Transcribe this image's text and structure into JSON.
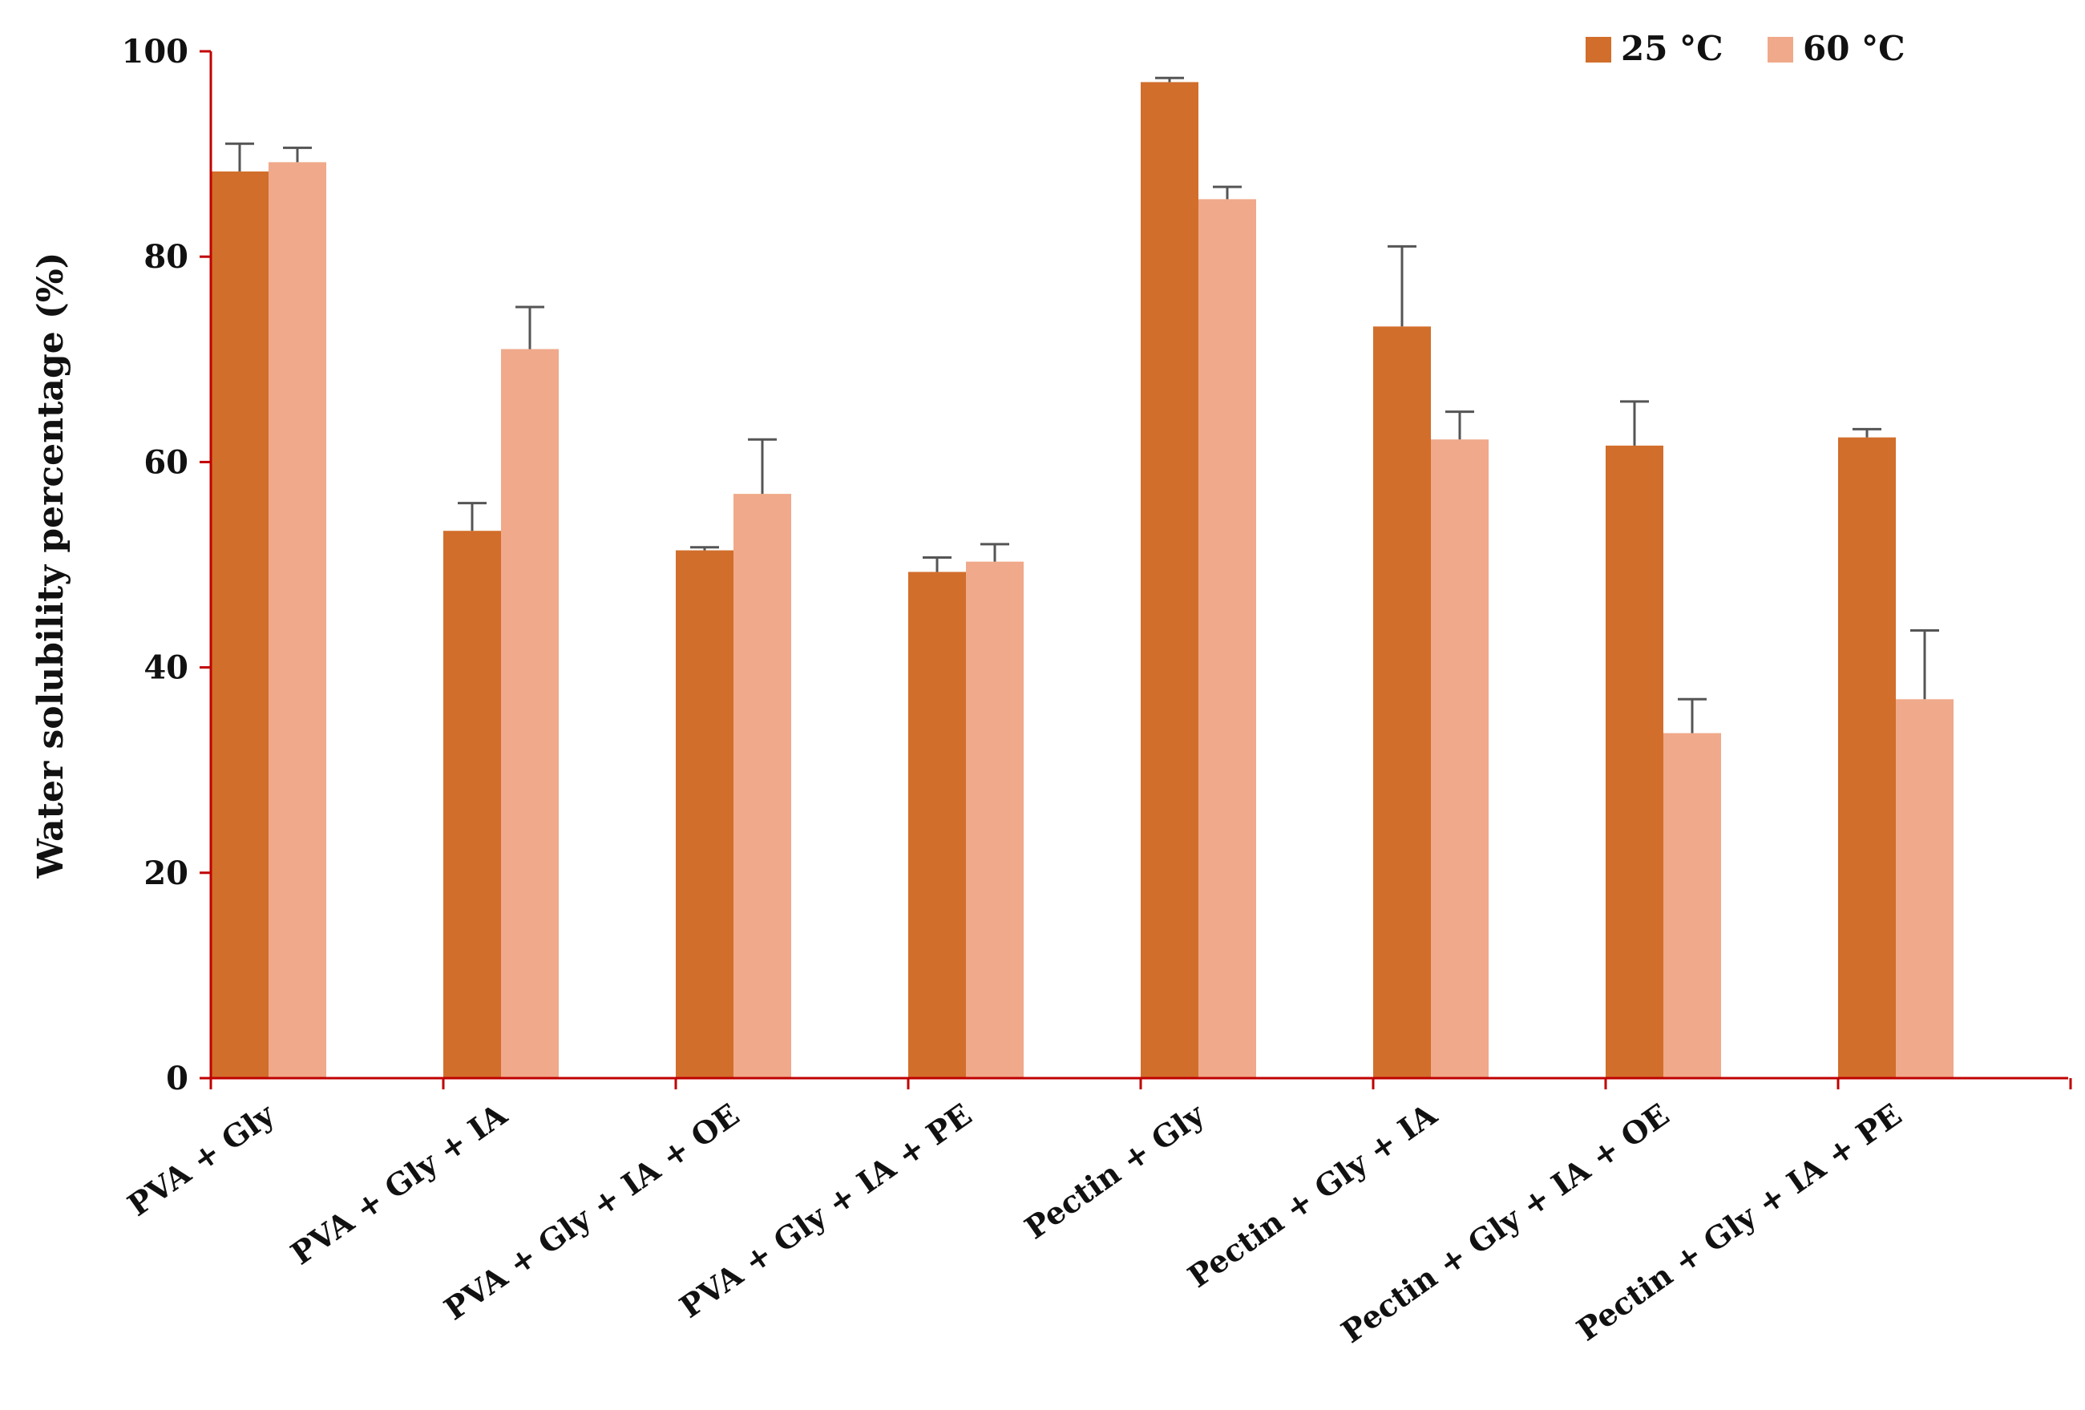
{
  "chart_data": {
    "type": "bar",
    "title": "",
    "xlabel": "",
    "ylabel": "Water solubility percentage (%)",
    "ylim": [
      0,
      100
    ],
    "yticks": [
      0,
      20,
      40,
      60,
      80,
      100
    ],
    "grid": false,
    "legend_position": "top-right",
    "categories": [
      "PVA + Gly",
      "PVA + Gly + IA",
      "PVA + Gly + IA + OE",
      "PVA + Gly + IA + PE",
      "Pectin + Gly",
      "Pectin + Gly + IA",
      "Pectin + Gly + IA + OE",
      "Pectin + Gly + IA + PE"
    ],
    "series": [
      {
        "name": "25 °C",
        "color": "#D26E2B",
        "values": [
          88.3,
          53.3,
          51.4,
          49.3,
          97.0,
          73.2,
          61.6,
          62.4
        ],
        "errors": [
          2.7,
          2.7,
          0.3,
          1.4,
          0.4,
          7.8,
          4.3,
          0.8
        ]
      },
      {
        "name": "60  °C",
        "color": "#F0A98A",
        "values": [
          89.2,
          71.0,
          56.9,
          50.3,
          85.6,
          62.2,
          33.6,
          36.9
        ],
        "errors": [
          1.4,
          4.1,
          5.3,
          1.7,
          1.2,
          2.7,
          3.3,
          6.7
        ]
      }
    ],
    "axis_color": "#C00000"
  }
}
